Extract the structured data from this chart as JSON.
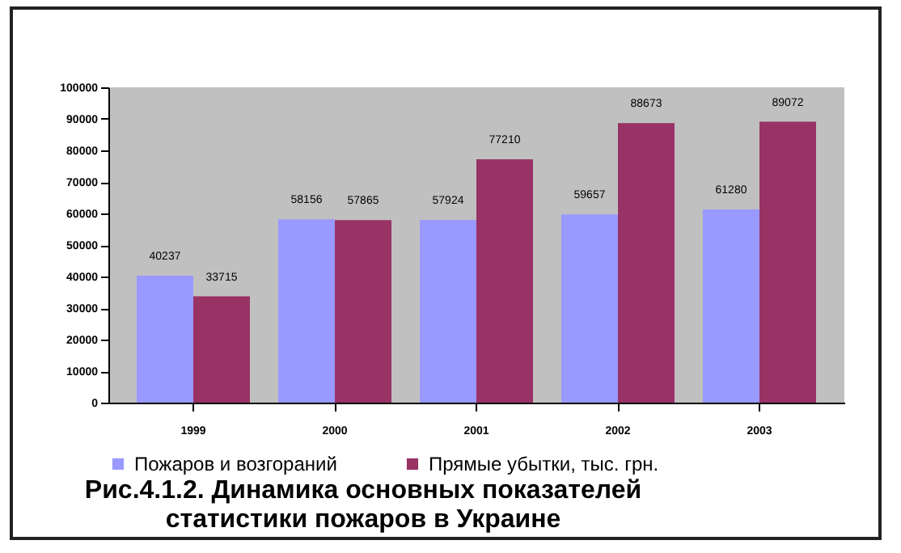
{
  "chart_data": {
    "type": "bar",
    "title": "Рис.4.1.2. Динамика основных показателей\nстатистики пожаров в Украине",
    "categories": [
      "1999",
      "2000",
      "2001",
      "2002",
      "2003"
    ],
    "series": [
      {
        "name": "Пожаров и возгораний",
        "color": "#9999ff",
        "values": [
          40237,
          58156,
          57924,
          59657,
          61280
        ]
      },
      {
        "name": "Прямые убытки, тыс. грн.",
        "color": "#993366",
        "values": [
          33715,
          57865,
          77210,
          88673,
          89072
        ]
      }
    ],
    "ylim": [
      0,
      100000
    ],
    "yticks": [
      0,
      10000,
      20000,
      30000,
      40000,
      50000,
      60000,
      70000,
      80000,
      90000,
      100000
    ],
    "data_labels": true,
    "legend": "bottom",
    "grid": false
  }
}
